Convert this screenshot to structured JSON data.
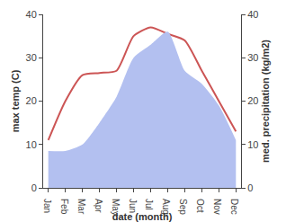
{
  "chart_data": {
    "type": "line",
    "categories": [
      "Jan",
      "Feb",
      "Mar",
      "Apr",
      "May",
      "Jun",
      "Jul",
      "Aug",
      "Sep",
      "Oct",
      "Nov",
      "Dec"
    ],
    "x_label": "date (month)",
    "y_label": "max temp (C)",
    "y2_label": "med. precipitation (kg/m2)",
    "series": [
      {
        "name": "med. precipitation",
        "type": "area",
        "axis": "y2",
        "color": "#b3c0f0",
        "values": [
          8.5,
          8.5,
          10,
          15,
          21,
          30,
          33,
          36,
          27,
          24,
          19,
          11
        ]
      },
      {
        "name": "max temp",
        "type": "line",
        "axis": "y",
        "color": "#cc5555",
        "values": [
          11,
          20,
          26,
          26.5,
          27,
          35,
          37,
          35.5,
          34,
          27,
          20,
          13
        ]
      }
    ],
    "ylim": [
      0,
      40
    ],
    "yticks": [
      0,
      10,
      20,
      30,
      40
    ],
    "y2lim": [
      0,
      40
    ],
    "y2ticks": [
      0,
      10,
      20,
      30,
      40
    ],
    "grid": false
  }
}
